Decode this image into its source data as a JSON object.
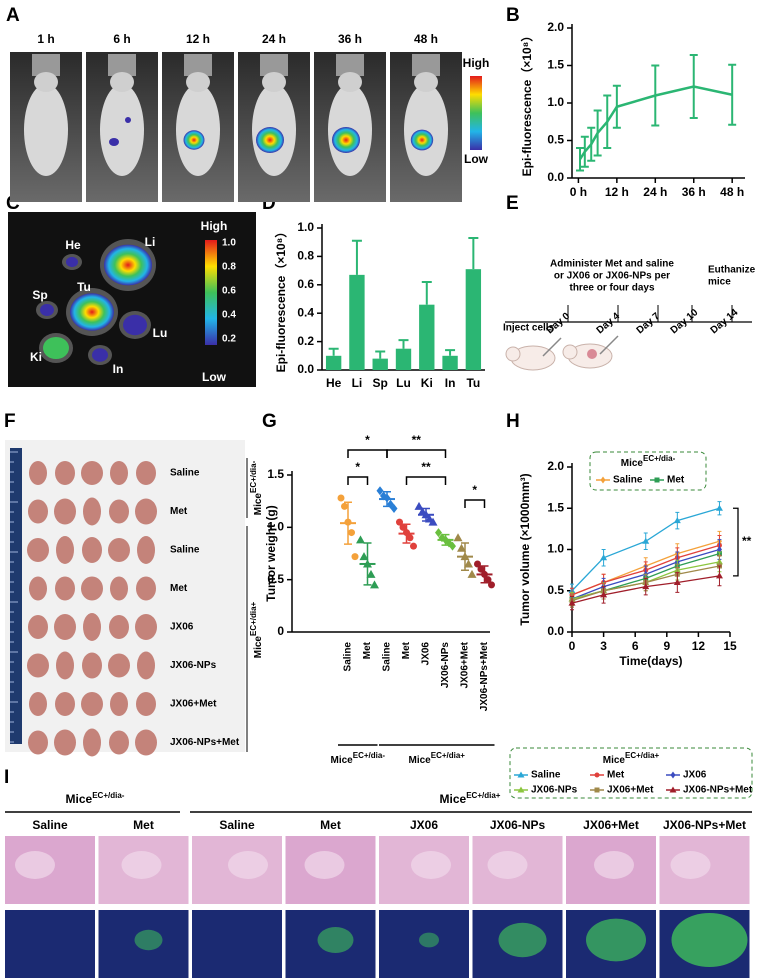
{
  "panel_labels": [
    "A",
    "B",
    "C",
    "D",
    "E",
    "F",
    "G",
    "H",
    "I"
  ],
  "mice": [
    {
      "base": "Mice",
      "sup": "EC+/dia-"
    },
    {
      "base": "Mice",
      "sup": "EC+/dia+"
    }
  ],
  "panel_a": {
    "timepoints": [
      "1 h",
      "6 h",
      "12 h",
      "24 h",
      "36 h",
      "48 h"
    ],
    "high": "High",
    "low": "Low"
  },
  "panel_c": {
    "organs": [
      "He",
      "Li",
      "Sp",
      "Tu",
      "Lu",
      "Ki",
      "In"
    ],
    "high": "High",
    "low": "Low",
    "scale": [
      "1.0",
      "0.8",
      "0.6",
      "0.4",
      "0.2"
    ]
  },
  "panel_e": {
    "treatment": [
      "Administer Met and saline",
      "or JX06 or JX06-NPs per",
      "three or four days"
    ],
    "inject": "Inject cells",
    "euthanize": [
      "Euthanize",
      "mice"
    ],
    "days": [
      "Day 0",
      "Day 4",
      "Day 7",
      "Day 10",
      "Day 14"
    ]
  },
  "panel_f": {
    "groups": [
      "Saline",
      "Met",
      "Saline",
      "Met",
      "JX06",
      "JX06-NPs",
      "JX06+Met",
      "JX06-NPs+Met"
    ]
  },
  "panel_i": {
    "groups": [
      "Saline",
      "Met",
      "Saline",
      "Met",
      "JX06",
      "JX06-NPs",
      "JX06+Met",
      "JX06-NPs+Met"
    ]
  },
  "chart_data": [
    {
      "type": "line",
      "ylabel": "Epi-fluorescence（×10⁸）",
      "x": [
        0.5,
        2,
        4,
        6,
        9,
        12,
        24,
        36,
        48
      ],
      "xlim": [
        -2,
        52
      ],
      "xticks": [
        {
          "value": 0,
          "label": "0 h"
        },
        {
          "value": 12,
          "label": "12 h"
        },
        {
          "value": 24,
          "label": "24 h"
        },
        {
          "value": 36,
          "label": "36 h"
        },
        {
          "value": 48,
          "label": "48 h"
        }
      ],
      "ylim": [
        0,
        2
      ],
      "yticks": [
        {
          "value": 0,
          "label": "0.0"
        },
        {
          "value": 0.5,
          "label": "0.5"
        },
        {
          "value": 1,
          "label": "1.0"
        },
        {
          "value": 1.5,
          "label": "1.5"
        },
        {
          "value": 2,
          "label": "2.0"
        }
      ],
      "series": [
        {
          "color": "#2bb673",
          "values": [
            0.25,
            0.35,
            0.45,
            0.6,
            0.75,
            0.95,
            1.1,
            1.22,
            1.11
          ],
          "errors": [
            0.15,
            0.2,
            0.22,
            0.3,
            0.35,
            0.28,
            0.4,
            0.42,
            0.4
          ]
        }
      ]
    },
    {
      "type": "bar",
      "ylabel": "Epi-fluorescence（×10⁸）",
      "categories": [
        "He",
        "Li",
        "Sp",
        "Lu",
        "Ki",
        "In",
        "Tu"
      ],
      "color": "#2bb673",
      "values": [
        0.1,
        0.67,
        0.08,
        0.15,
        0.46,
        0.1,
        0.71
      ],
      "errors": [
        0.05,
        0.24,
        0.05,
        0.06,
        0.16,
        0.04,
        0.22
      ],
      "ylim": [
        0,
        1
      ],
      "yticks": [
        {
          "value": 0,
          "label": "0.0"
        },
        0.2,
        0.4,
        0.6,
        0.8,
        {
          "value": 1,
          "label": "1.0"
        }
      ]
    },
    {
      "type": "dot",
      "ylabel": "Tumor weight (g)",
      "categories": [
        "Saline",
        "Met",
        "Saline",
        "Met",
        "JX06",
        "JX06-NPs",
        "JX06+Met",
        "JX06-NPs+Met"
      ],
      "ylim": [
        0,
        1.5
      ],
      "yticks": [
        0,
        0.5,
        {
          "value": 1,
          "label": "1.0"
        },
        1.5
      ],
      "groups": [
        {
          "color": "#f4a13a",
          "marker": "circle",
          "points": [
            1.28,
            1.2,
            1.05,
            0.95,
            0.72
          ],
          "mean": 1.04,
          "sd": 0.2
        },
        {
          "color": "#2e9d55",
          "marker": "triangle",
          "points": [
            0.88,
            0.72,
            0.65,
            0.55,
            0.45
          ],
          "mean": 0.65,
          "sd": 0.2
        },
        {
          "color": "#2a7fd6",
          "marker": "diamond",
          "points": [
            1.35,
            1.3,
            1.28,
            1.22,
            1.18
          ],
          "mean": 1.27,
          "sd": 0.07
        },
        {
          "color": "#e0413c",
          "marker": "circle",
          "points": [
            1.05,
            1.0,
            0.95,
            0.9,
            0.82
          ],
          "mean": 0.94,
          "sd": 0.09
        },
        {
          "color": "#3b4cc0",
          "marker": "triangle",
          "points": [
            1.2,
            1.15,
            1.12,
            1.08,
            1.05
          ],
          "mean": 1.12,
          "sd": 0.06
        },
        {
          "color": "#6abf3f",
          "marker": "diamond",
          "points": [
            0.95,
            0.9,
            0.88,
            0.85,
            0.82
          ],
          "mean": 0.88,
          "sd": 0.05
        },
        {
          "color": "#a0894a",
          "marker": "triangle",
          "points": [
            0.9,
            0.8,
            0.72,
            0.65,
            0.55
          ],
          "mean": 0.72,
          "sd": 0.13
        },
        {
          "color": "#a01e2a",
          "marker": "circle",
          "points": [
            0.65,
            0.6,
            0.55,
            0.5,
            0.45
          ],
          "mean": 0.55,
          "sd": 0.08
        }
      ],
      "annotations": [
        "*",
        "*",
        "**",
        "**",
        "*"
      ]
    },
    {
      "type": "line",
      "ylabel": "Tumor volume (×1000mm³)",
      "xlabel": "Time(days)",
      "x": [
        0,
        3,
        7,
        10,
        14
      ],
      "xlim": [
        0,
        15
      ],
      "xticks": [
        0,
        3,
        6,
        9,
        12,
        15
      ],
      "ylim": [
        0,
        2
      ],
      "yticks": [
        {
          "value": 0,
          "label": "0.0"
        },
        {
          "value": 0.5,
          "label": "0.5"
        },
        {
          "value": 1,
          "label": "1.0"
        },
        {
          "value": 1.5,
          "label": "1.5"
        },
        {
          "value": 2,
          "label": "2.0"
        }
      ],
      "series": [
        {
          "name": "Saline",
          "color": "#f4a13a",
          "marker": "diamond",
          "values": [
            0.45,
            0.6,
            0.8,
            0.95,
            1.1
          ],
          "errors": [
            0.08,
            0.1,
            0.1,
            0.12,
            0.12
          ]
        },
        {
          "name": "Met",
          "color": "#2e9d55",
          "marker": "square",
          "values": [
            0.4,
            0.5,
            0.65,
            0.8,
            0.95
          ],
          "errors": [
            0.08,
            0.1,
            0.1,
            0.12,
            0.12
          ]
        },
        {
          "name": "Saline",
          "color": "#2aa7d6",
          "marker": "triangle",
          "values": [
            0.5,
            0.9,
            1.1,
            1.35,
            1.5
          ],
          "errors": [
            0.08,
            0.1,
            0.1,
            0.1,
            0.08
          ]
        },
        {
          "name": "Met",
          "color": "#e0413c",
          "marker": "circle",
          "values": [
            0.45,
            0.6,
            0.75,
            0.9,
            1.05
          ],
          "errors": [
            0.08,
            0.1,
            0.1,
            0.12,
            0.12
          ]
        },
        {
          "name": "JX06",
          "color": "#3b4cc0",
          "marker": "diamond",
          "values": [
            0.4,
            0.55,
            0.7,
            0.85,
            1.0
          ],
          "errors": [
            0.08,
            0.1,
            0.1,
            0.12,
            0.12
          ]
        },
        {
          "name": "JX06-NPs",
          "color": "#8cc63f",
          "marker": "triangle",
          "values": [
            0.4,
            0.5,
            0.6,
            0.75,
            0.85
          ],
          "errors": [
            0.08,
            0.1,
            0.1,
            0.12,
            0.12
          ]
        },
        {
          "name": "JX06+Met",
          "color": "#a0894a",
          "marker": "square",
          "values": [
            0.38,
            0.5,
            0.6,
            0.7,
            0.8
          ],
          "errors": [
            0.08,
            0.1,
            0.1,
            0.12,
            0.12
          ]
        },
        {
          "name": "JX06-NPs+Met",
          "color": "#a01e2a",
          "marker": "triangle",
          "values": [
            0.35,
            0.45,
            0.55,
            0.6,
            0.68
          ],
          "errors": [
            0.08,
            0.1,
            0.1,
            0.12,
            0.12
          ]
        }
      ],
      "annotations": [
        "**"
      ]
    }
  ]
}
